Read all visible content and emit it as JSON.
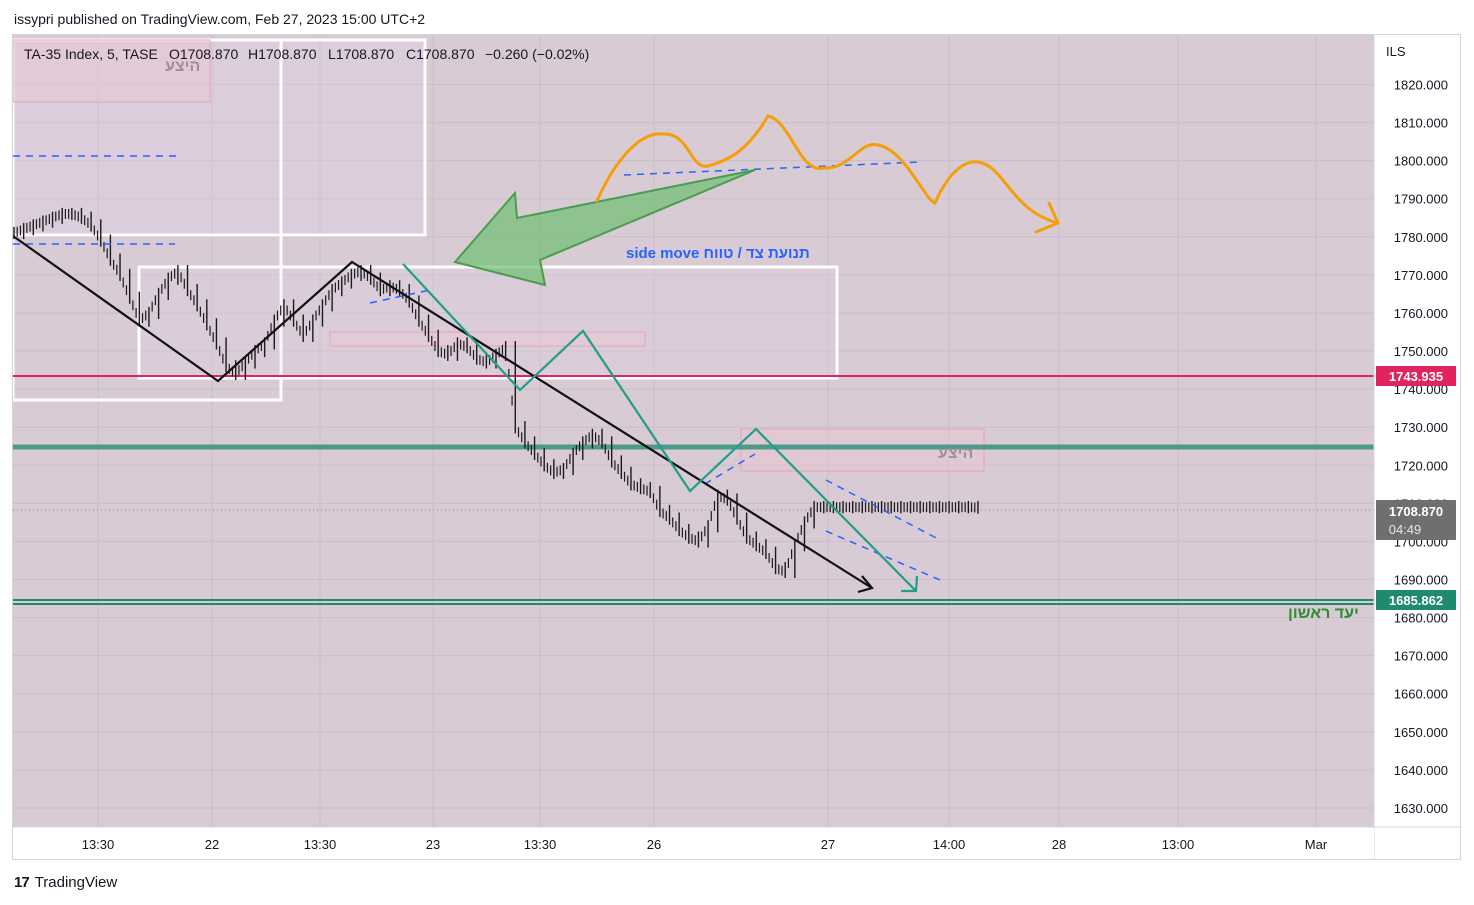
{
  "publisher_line": "issypri published on TradingView.com, Feb 27, 2023 15:00 UTC+2",
  "footer": {
    "brand": "TradingView",
    "logo_icon": "tradingview-logo-icon"
  },
  "colors": {
    "background": "#d8cbd4",
    "grid": "#c9bfc8",
    "candle": "#1b1b1b",
    "wick_highlight": "#e8d98a",
    "red_level": "#e0245e",
    "green_level": "#4d9a8a",
    "target_line": "#1f8a70",
    "black_path": "#111111",
    "teal_path": "#1f9e89",
    "orange_path": "#f59e0b",
    "blue_dash": "#2962ff",
    "white_box": "#ffffff",
    "pink_box": "#e7a2b5",
    "green_arrow": "#6fbf73"
  },
  "legend": {
    "symbol": "TA-35 Index, 5, TASE",
    "open": "O1708.870",
    "high": "H1708.870",
    "low": "L1708.870",
    "close": "C1708.870",
    "change": "−0.260 (−0.02%)"
  },
  "annotations": {
    "supply_label_1": "היצע",
    "supply_label_2": "היצע",
    "side_move": "side move תנועת צד / טווח",
    "first_target": "יעד ראשון"
  },
  "chart_data": {
    "type": "line",
    "title": "TA-35 Index, 5, TASE",
    "currency": "ILS",
    "ylim": [
      1625,
      1833
    ],
    "y_ticks": [
      "1820.000",
      "1810.000",
      "1800.000",
      "1790.000",
      "1780.000",
      "1770.000",
      "1760.000",
      "1750.000",
      "1740.000",
      "1730.000",
      "1720.000",
      "1710.000",
      "1700.000",
      "1690.000",
      "1680.000",
      "1670.000",
      "1660.000",
      "1650.000",
      "1640.000",
      "1630.000"
    ],
    "x_ticks": [
      "13:30",
      "22",
      "13:30",
      "23",
      "13:30",
      "26",
      "27",
      "14:00",
      "28",
      "13:00",
      "Mar"
    ],
    "series": [
      {
        "x": [
          0,
          3,
          6,
          9,
          12,
          15,
          18,
          21,
          24,
          27,
          30,
          33,
          36,
          39,
          42,
          45,
          48,
          51,
          54,
          57,
          60,
          63,
          66,
          69,
          72,
          75,
          78,
          81,
          84,
          87,
          90,
          93,
          96,
          99,
          102,
          105,
          108,
          111,
          114,
          117,
          120,
          123,
          126,
          129,
          132,
          135,
          138,
          141,
          144,
          147,
          150,
          153,
          156,
          159,
          162,
          165,
          168,
          171,
          174,
          177,
          180,
          183,
          186,
          189,
          192,
          195,
          198,
          201,
          204,
          207,
          210,
          213,
          216,
          219,
          222,
          225,
          228,
          231,
          234,
          237,
          240,
          243,
          246,
          249,
          252,
          255,
          258,
          261,
          264,
          267,
          270,
          273,
          276,
          279,
          282,
          285,
          288,
          291,
          294,
          297,
          300
        ],
        "values": [
          1781,
          1782,
          1783,
          1784,
          1785,
          1786,
          1786,
          1785,
          1783,
          1779,
          1774,
          1770,
          1764,
          1758,
          1760,
          1765,
          1769,
          1771,
          1766,
          1762,
          1757,
          1752,
          1746,
          1744,
          1747,
          1750,
          1752,
          1758,
          1762,
          1758,
          1754,
          1758,
          1762,
          1766,
          1768,
          1770,
          1771,
          1769,
          1766,
          1767,
          1766,
          1763,
          1758,
          1754,
          1750,
          1749,
          1752,
          1751,
          1748,
          1747,
          1749,
          1751,
          1730,
          1726,
          1723,
          1720,
          1718,
          1719,
          1723,
          1726,
          1728,
          1726,
          1721,
          1718,
          1715,
          1714,
          1713,
          1708,
          1706,
          1703,
          1701,
          1700,
          1704,
          1712,
          1711,
          1706,
          1701,
          1699,
          1697,
          1693,
          1692,
          1699,
          1705,
          1709,
          1709,
          1709,
          1709,
          1709,
          1709,
          1709,
          1709,
          1709,
          1709,
          1709,
          1709,
          1709,
          1709,
          1709,
          1709,
          1709,
          1708.87
        ]
      }
    ],
    "levels": {
      "red_resistance": "1743.935",
      "green_support": 1726,
      "first_target": "1685.862",
      "last_price": "1708.870",
      "countdown": "04:49"
    }
  }
}
